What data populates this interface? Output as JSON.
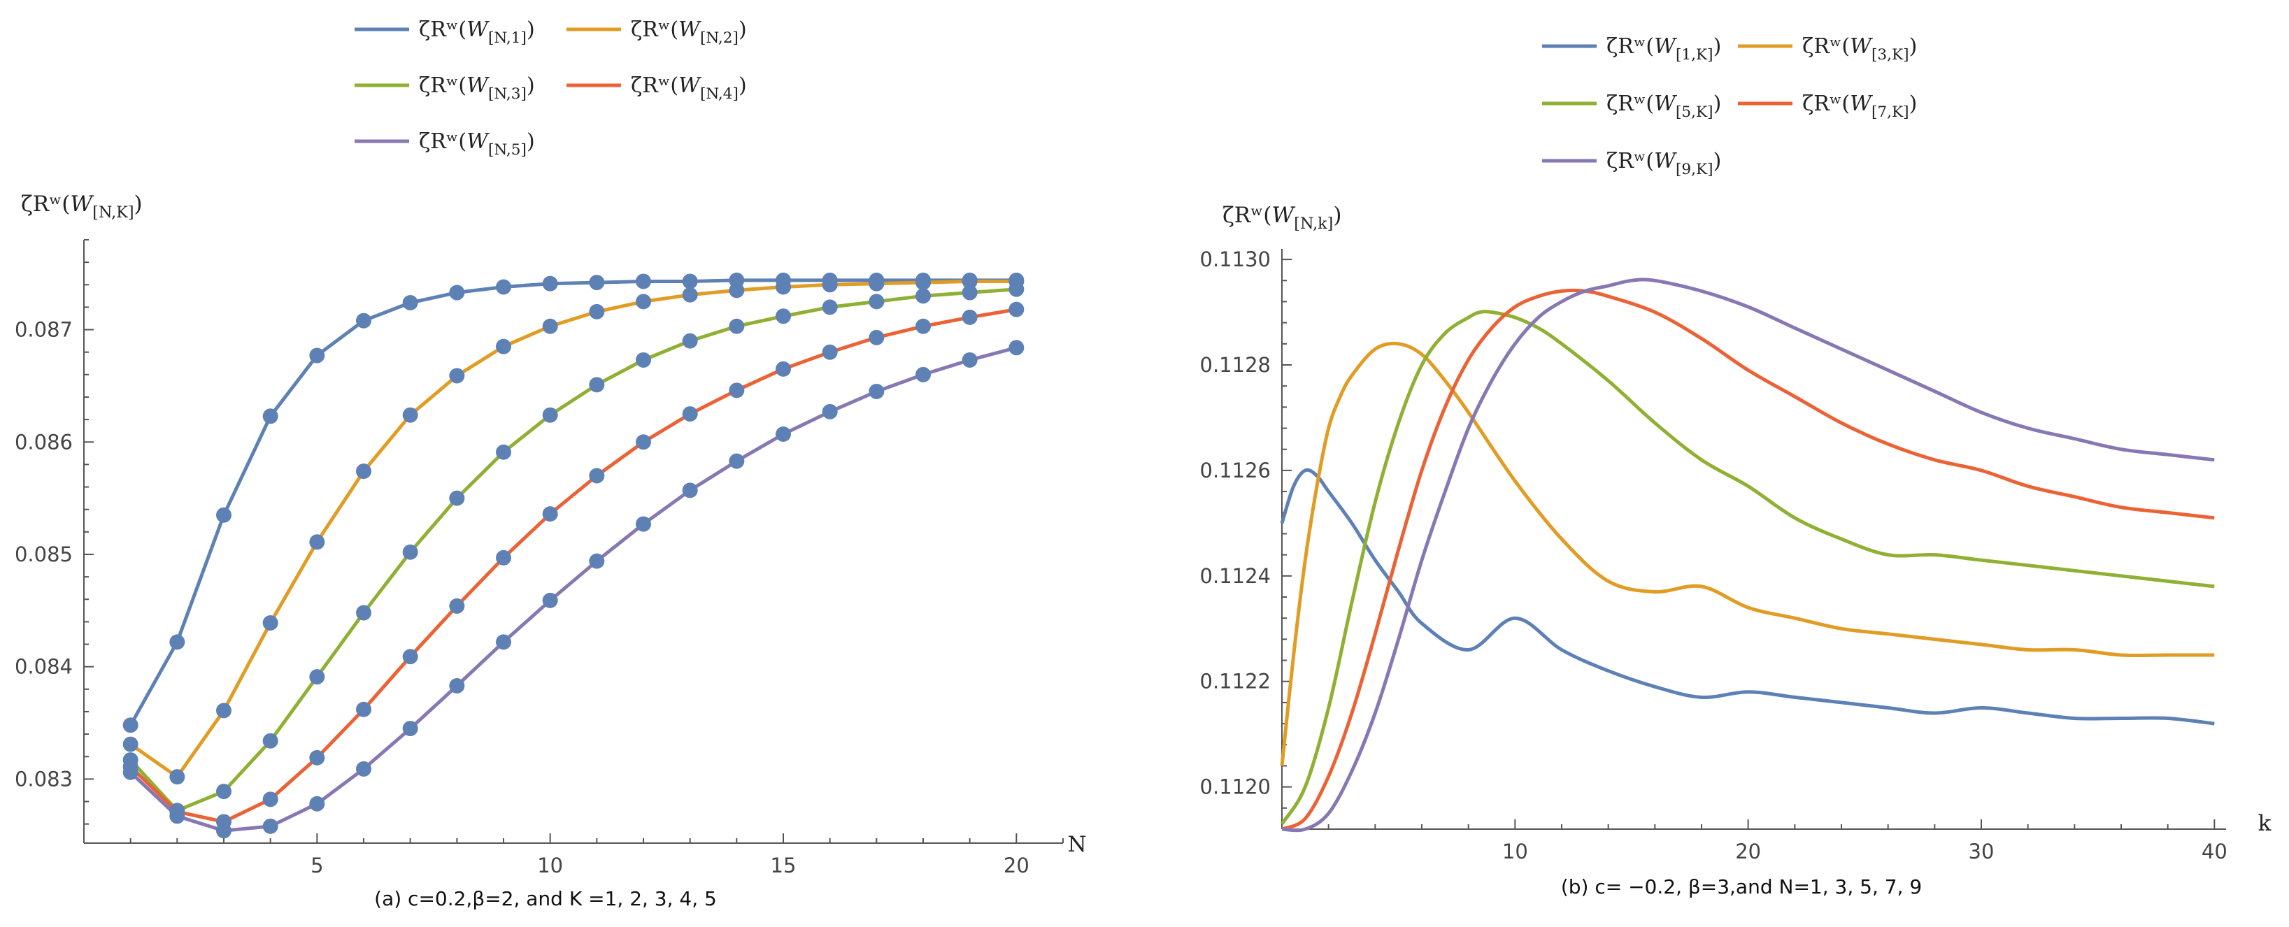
{
  "chart_data": [
    {
      "type": "line",
      "caption": "(a) c=0.2,β=2, and K =1, 2, 3, 4, 5",
      "xlabel": "N",
      "ylabel": "ζRʷ(W[N,K])",
      "xlim": [
        0,
        21
      ],
      "ylim": [
        0.08243,
        0.0878
      ],
      "x_ticks": [
        5,
        10,
        15,
        20
      ],
      "x_tick_labels": [
        "5",
        "10",
        "15",
        "20"
      ],
      "y_ticks": [
        0.083,
        0.084,
        0.085,
        0.086,
        0.087
      ],
      "y_tick_labels": [
        "0.083",
        "0.084",
        "0.085",
        "0.086",
        "0.087"
      ],
      "markers": true,
      "x": [
        1,
        2,
        3,
        4,
        5,
        6,
        7,
        8,
        9,
        10,
        11,
        12,
        13,
        14,
        15,
        16,
        17,
        18,
        19,
        20
      ],
      "series": [
        {
          "name": "ζRʷ(W[N,1])",
          "color": "#5E81B5",
          "values": [
            0.08348,
            0.08422,
            0.08535,
            0.08623,
            0.08677,
            0.08708,
            0.08724,
            0.08733,
            0.08738,
            0.08741,
            0.08742,
            0.08743,
            0.08743,
            0.08744,
            0.08744,
            0.08744,
            0.08744,
            0.08744,
            0.08744,
            0.08744
          ]
        },
        {
          "name": "ζRʷ(W[N,2])",
          "color": "#E19C24",
          "values": [
            0.08331,
            0.08302,
            0.08361,
            0.08439,
            0.08511,
            0.08574,
            0.08624,
            0.08659,
            0.08685,
            0.08703,
            0.08716,
            0.08725,
            0.08731,
            0.08735,
            0.08738,
            0.0874,
            0.08741,
            0.08742,
            0.08743,
            0.08743
          ]
        },
        {
          "name": "ζRʷ(W[N,3])",
          "color": "#8FB032",
          "values": [
            0.08317,
            0.08272,
            0.08289,
            0.08334,
            0.08391,
            0.08448,
            0.08502,
            0.0855,
            0.08591,
            0.08624,
            0.08651,
            0.08673,
            0.0869,
            0.08703,
            0.08712,
            0.0872,
            0.08725,
            0.0873,
            0.08733,
            0.08736
          ]
        },
        {
          "name": "ζRʷ(W[N,4])",
          "color": "#EB6235",
          "values": [
            0.08311,
            0.08271,
            0.08262,
            0.08282,
            0.08319,
            0.08362,
            0.08409,
            0.08454,
            0.08497,
            0.08536,
            0.0857,
            0.086,
            0.08625,
            0.08646,
            0.08665,
            0.0868,
            0.08693,
            0.08703,
            0.08711,
            0.08718
          ]
        },
        {
          "name": "ζRʷ(W[N,5])",
          "color": "#8778B3",
          "values": [
            0.08306,
            0.08267,
            0.08254,
            0.08258,
            0.08278,
            0.08309,
            0.08345,
            0.08383,
            0.08422,
            0.08459,
            0.08494,
            0.08527,
            0.08557,
            0.08583,
            0.08607,
            0.08627,
            0.08645,
            0.0866,
            0.08673,
            0.08684
          ]
        }
      ]
    },
    {
      "type": "line",
      "caption": "(b) c= −0.2, β=3,and N=1, 3, 5, 7, 9",
      "xlabel": "k",
      "ylabel": "ζRʷ(W[N,k])",
      "xlim": [
        0,
        40.5
      ],
      "ylim": [
        0.11192,
        0.11302
      ],
      "x_ticks": [
        10,
        20,
        30,
        40
      ],
      "x_tick_labels": [
        "10",
        "20",
        "30",
        "40"
      ],
      "y_ticks": [
        0.112,
        0.1122,
        0.1124,
        0.1126,
        0.1128,
        0.113
      ],
      "y_tick_labels": [
        "0.1120",
        "0.1122",
        "0.1124",
        "0.1126",
        "0.1128",
        "0.1130"
      ],
      "markers": false,
      "series": [
        {
          "name": "ζRʷ(W[1,K])",
          "color": "#5E81B5",
          "x": [
            0,
            0.5,
            1,
            1.5,
            2,
            3,
            4,
            5,
            6,
            8,
            10,
            12,
            14,
            16,
            18,
            20,
            22,
            24,
            26,
            28,
            30,
            32,
            34,
            36,
            38,
            40
          ],
          "values": [
            0.1125,
            0.11257,
            0.1126,
            0.11259,
            0.11256,
            0.1125,
            0.11243,
            0.11237,
            0.11231,
            0.11226,
            0.11232,
            0.11226,
            0.11222,
            0.11219,
            0.11217,
            0.11218,
            0.11217,
            0.11216,
            0.11215,
            0.11214,
            0.11215,
            0.11214,
            0.11213,
            0.11213,
            0.11213,
            0.11212
          ]
        },
        {
          "name": "ζRʷ(W[3,K])",
          "color": "#E19C24",
          "x": [
            0,
            0.5,
            1,
            1.5,
            2,
            2.5,
            3,
            4,
            5,
            6,
            7,
            8,
            10,
            12,
            14,
            16,
            18,
            20,
            22,
            24,
            26,
            28,
            30,
            32,
            34,
            36,
            38,
            40
          ],
          "values": [
            0.11204,
            0.11225,
            0.11243,
            0.11257,
            0.11268,
            0.11274,
            0.11278,
            0.11283,
            0.11284,
            0.11282,
            0.11277,
            0.11271,
            0.11258,
            0.11247,
            0.11239,
            0.11237,
            0.11238,
            0.11234,
            0.11232,
            0.1123,
            0.11229,
            0.11228,
            0.11227,
            0.11226,
            0.11226,
            0.11225,
            0.11225,
            0.11225
          ]
        },
        {
          "name": "ζRʷ(W[5,K])",
          "color": "#8FB032",
          "x": [
            0,
            1,
            2,
            3,
            4,
            5,
            6,
            7,
            8,
            8.5,
            9,
            10,
            11,
            12,
            14,
            16,
            18,
            20,
            22,
            24,
            26,
            28,
            30,
            32,
            34,
            36,
            38,
            40
          ],
          "values": [
            0.11193,
            0.112,
            0.11215,
            0.11235,
            0.11254,
            0.11269,
            0.1128,
            0.11286,
            0.11289,
            0.1129,
            0.1129,
            0.11289,
            0.11287,
            0.11284,
            0.11277,
            0.11269,
            0.11262,
            0.11257,
            0.11251,
            0.11247,
            0.11244,
            0.11244,
            0.11243,
            0.11242,
            0.11241,
            0.1124,
            0.11239,
            0.11238
          ]
        },
        {
          "name": "ζRʷ(W[7,K])",
          "color": "#EB6235",
          "x": [
            0,
            1,
            2,
            3,
            4,
            5,
            6,
            7,
            8,
            9,
            10,
            11,
            12,
            13,
            14,
            16,
            18,
            20,
            22,
            24,
            26,
            28,
            30,
            32,
            34,
            36,
            38,
            40
          ],
          "values": [
            0.11192,
            0.11194,
            0.11202,
            0.11214,
            0.11229,
            0.11245,
            0.1126,
            0.11272,
            0.11281,
            0.11287,
            0.11291,
            0.11293,
            0.11294,
            0.11294,
            0.11293,
            0.1129,
            0.11285,
            0.11279,
            0.11274,
            0.11269,
            0.11265,
            0.11262,
            0.1126,
            0.11257,
            0.11255,
            0.11253,
            0.11252,
            0.11251
          ]
        },
        {
          "name": "ζRʷ(W[9,K])",
          "color": "#8778B3",
          "x": [
            0,
            1,
            2,
            3,
            4,
            5,
            6,
            7,
            8,
            9,
            10,
            11,
            12,
            13,
            14,
            15,
            16,
            18,
            20,
            22,
            24,
            26,
            28,
            30,
            32,
            34,
            36,
            38,
            40
          ],
          "values": [
            0.11192,
            0.11192,
            0.11195,
            0.11203,
            0.11214,
            0.11228,
            0.11243,
            0.11256,
            0.11268,
            0.11277,
            0.11284,
            0.11289,
            0.11292,
            0.11294,
            0.11295,
            0.11296,
            0.11296,
            0.11294,
            0.11291,
            0.11287,
            0.11283,
            0.11279,
            0.11275,
            0.11271,
            0.11268,
            0.11266,
            0.11264,
            0.11263,
            0.11262
          ]
        }
      ]
    }
  ]
}
